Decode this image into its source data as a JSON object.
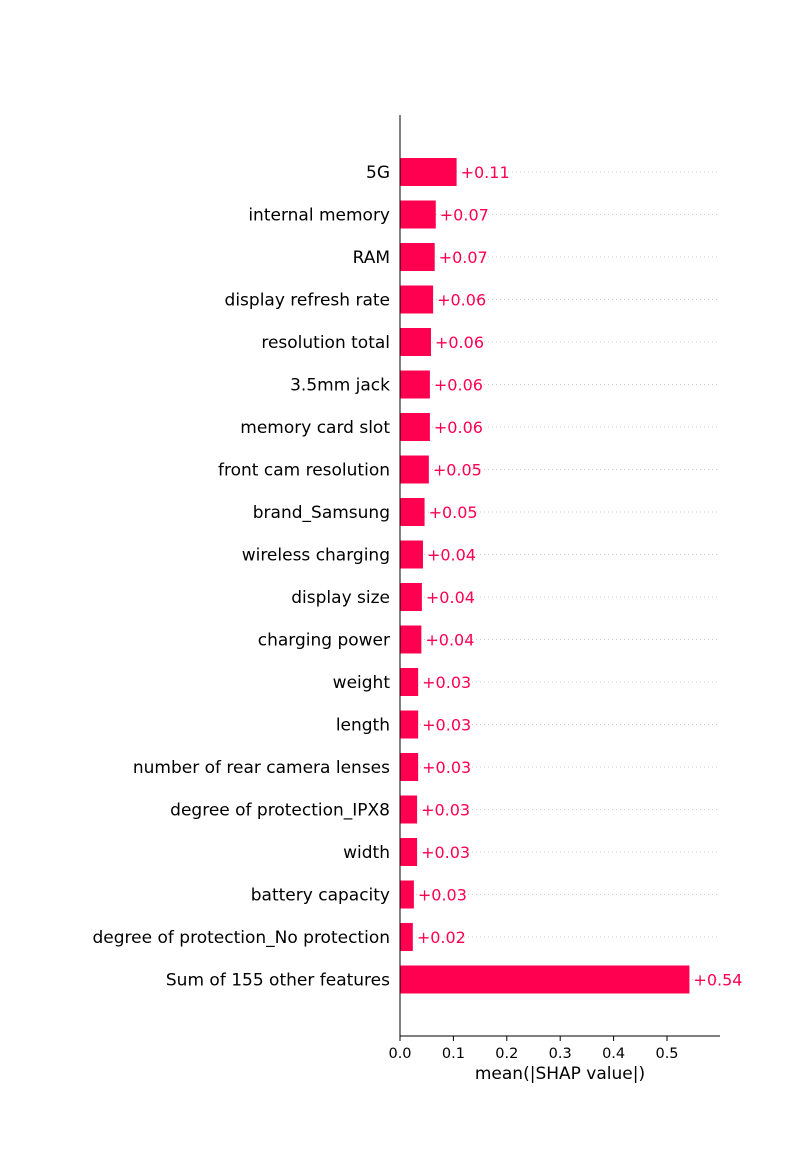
{
  "chart_data": {
    "type": "bar",
    "orientation": "horizontal",
    "title": "",
    "xlabel": "mean(|SHAP value|)",
    "ylabel": "",
    "xlim": [
      0,
      0.595
    ],
    "xticks": [
      0.0,
      0.1,
      0.2,
      0.3,
      0.4,
      0.5
    ],
    "xtick_labels": [
      "0.0",
      "0.1",
      "0.2",
      "0.3",
      "0.4",
      "0.5"
    ],
    "bar_color": "#ff0051",
    "label_color": "#ff0051",
    "grid": "dotted row guides",
    "categories": [
      "5G",
      "internal memory",
      "RAM",
      "display refresh rate",
      "resolution total",
      "3.5mm jack",
      "memory card slot",
      "front cam resolution",
      "brand_Samsung",
      "wireless charging",
      "display size",
      "charging power",
      "weight",
      "length",
      "number of rear camera lenses",
      "degree of protection_IPX8",
      "width",
      "battery capacity",
      "degree of protection_No protection",
      "Sum of 155 other features"
    ],
    "values": [
      0.106,
      0.067,
      0.065,
      0.062,
      0.058,
      0.056,
      0.056,
      0.054,
      0.046,
      0.043,
      0.041,
      0.04,
      0.034,
      0.034,
      0.034,
      0.032,
      0.032,
      0.026,
      0.024,
      0.542
    ],
    "value_labels": [
      "+0.11",
      "+0.07",
      "+0.07",
      "+0.06",
      "+0.06",
      "+0.06",
      "+0.06",
      "+0.05",
      "+0.05",
      "+0.04",
      "+0.04",
      "+0.04",
      "+0.03",
      "+0.03",
      "+0.03",
      "+0.03",
      "+0.03",
      "+0.03",
      "+0.02",
      "+0.54"
    ]
  }
}
